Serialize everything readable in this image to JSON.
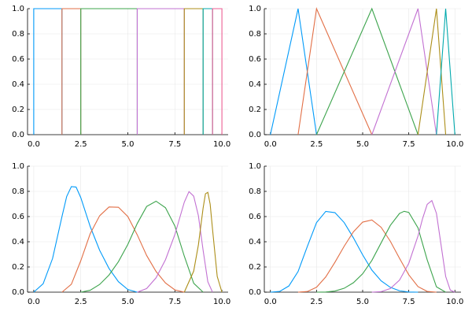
{
  "chart_data": [
    {
      "type": "line",
      "xlim": [
        -0.33,
        10.33
      ],
      "ylim": [
        0,
        1
      ],
      "grid": true,
      "xticks": [
        {
          "value": 0,
          "label": "0.0"
        },
        2.5,
        {
          "value": 5,
          "label": "5.0"
        },
        7.5,
        {
          "value": 10,
          "label": "10.0"
        }
      ],
      "yticks": [
        {
          "value": 0,
          "label": "0.0"
        },
        0.2,
        0.4,
        0.6,
        0.8,
        {
          "value": 1,
          "label": "1.0"
        }
      ],
      "series": [
        {
          "color": "#009af9",
          "x": [
            0,
            0,
            1.5,
            1.5
          ],
          "values": [
            0,
            1,
            1,
            0
          ]
        },
        {
          "color": "#e26f46",
          "x": [
            1.5,
            1.5,
            2.5,
            2.5
          ],
          "values": [
            0,
            1,
            1,
            0
          ]
        },
        {
          "color": "#3da44d",
          "x": [
            2.5,
            2.5,
            5.5,
            5.5
          ],
          "values": [
            0,
            1,
            1,
            0
          ]
        },
        {
          "color": "#c271d2",
          "x": [
            5.5,
            5.5,
            8,
            8
          ],
          "values": [
            0,
            1,
            1,
            0
          ]
        },
        {
          "color": "#ac8e18",
          "x": [
            8,
            8,
            9,
            9
          ],
          "values": [
            0,
            1,
            1,
            0
          ]
        },
        {
          "color": "#00a9ad",
          "x": [
            9,
            9,
            9.5,
            9.5
          ],
          "values": [
            0,
            1,
            1,
            0
          ]
        },
        {
          "color": "#ed5e93",
          "x": [
            9.5,
            9.5,
            10,
            10
          ],
          "values": [
            0,
            1,
            1,
            0
          ]
        }
      ]
    },
    {
      "type": "line",
      "xlim": [
        -0.33,
        10.33
      ],
      "ylim": [
        0,
        1
      ],
      "grid": true,
      "xticks": [
        {
          "value": 0,
          "label": "0.0"
        },
        2.5,
        {
          "value": 5,
          "label": "5.0"
        },
        7.5,
        {
          "value": 10,
          "label": "10.0"
        }
      ],
      "yticks": [
        {
          "value": 0,
          "label": "0.0"
        },
        0.2,
        0.4,
        0.6,
        0.8,
        {
          "value": 1,
          "label": "1.0"
        }
      ],
      "series": [
        {
          "color": "#009af9",
          "x": [
            0,
            1.5,
            2.5
          ],
          "values": [
            0,
            1,
            0
          ]
        },
        {
          "color": "#e26f46",
          "x": [
            1.5,
            2.5,
            5.5
          ],
          "values": [
            0,
            1,
            0
          ]
        },
        {
          "color": "#3da44d",
          "x": [
            2.5,
            5.5,
            8
          ],
          "values": [
            0,
            1,
            0
          ]
        },
        {
          "color": "#c271d2",
          "x": [
            5.5,
            8,
            9
          ],
          "values": [
            0,
            1,
            0
          ]
        },
        {
          "color": "#ac8e18",
          "x": [
            8,
            9,
            9.5
          ],
          "values": [
            0,
            1,
            0
          ]
        },
        {
          "color": "#00a9ad",
          "x": [
            9,
            9.5,
            10
          ],
          "values": [
            0,
            1,
            0
          ]
        }
      ]
    },
    {
      "type": "line",
      "xlim": [
        -0.33,
        10.33
      ],
      "ylim": [
        0,
        1
      ],
      "grid": true,
      "xticks": [
        {
          "value": 0,
          "label": "0.0"
        },
        2.5,
        {
          "value": 5,
          "label": "5.0"
        },
        7.5,
        {
          "value": 10,
          "label": "10.0"
        }
      ],
      "yticks": [
        {
          "value": 0,
          "label": "0.0"
        },
        0.2,
        0.4,
        0.6,
        0.8,
        {
          "value": 1,
          "label": "1.0"
        }
      ],
      "series": [
        {
          "color": "#009af9",
          "x": [
            0,
            0.5,
            1,
            1.5,
            1.75,
            2,
            2.25,
            2.5,
            3,
            3.5,
            4,
            4.5,
            5,
            5.5
          ],
          "values": [
            0,
            0.067,
            0.267,
            0.6,
            0.759,
            0.838,
            0.834,
            0.75,
            0.521,
            0.333,
            0.188,
            0.083,
            0.021,
            0
          ]
        },
        {
          "color": "#e26f46",
          "x": [
            1.5,
            2,
            2.5,
            3,
            3.5,
            4,
            4.5,
            5,
            5.5,
            6,
            6.5,
            7,
            7.5,
            8
          ],
          "values": [
            0,
            0.063,
            0.25,
            0.464,
            0.606,
            0.676,
            0.674,
            0.6,
            0.455,
            0.291,
            0.164,
            0.073,
            0.018,
            0
          ]
        },
        {
          "color": "#3da44d",
          "x": [
            2.5,
            3,
            3.5,
            4,
            4.5,
            5,
            5.5,
            6,
            6.5,
            7,
            7.5,
            8,
            8.5,
            9
          ],
          "values": [
            0,
            0.015,
            0.061,
            0.136,
            0.242,
            0.379,
            0.545,
            0.68,
            0.722,
            0.67,
            0.525,
            0.286,
            0.071,
            0
          ]
        },
        {
          "color": "#c271d2",
          "x": [
            5.5,
            6,
            6.5,
            7,
            7.5,
            8,
            8.25,
            8.5,
            8.75,
            9,
            9.25,
            9.5
          ],
          "values": [
            0,
            0.029,
            0.114,
            0.257,
            0.457,
            0.714,
            0.798,
            0.762,
            0.607,
            0.333,
            0.083,
            0
          ]
        },
        {
          "color": "#ac8e18",
          "x": [
            8,
            8.5,
            8.75,
            9,
            9.125,
            9.25,
            9.375,
            9.5,
            9.75,
            10
          ],
          "values": [
            0,
            0.167,
            0.375,
            0.667,
            0.781,
            0.792,
            0.698,
            0.5,
            0.125,
            0
          ]
        }
      ]
    },
    {
      "type": "line",
      "xlim": [
        -0.33,
        10.33
      ],
      "ylim": [
        0,
        1
      ],
      "grid": true,
      "xticks": [
        {
          "value": 0,
          "label": "0.0"
        },
        2.5,
        {
          "value": 5,
          "label": "5.0"
        },
        7.5,
        {
          "value": 10,
          "label": "10.0"
        }
      ],
      "yticks": [
        {
          "value": 0,
          "label": "0.0"
        },
        0.2,
        0.4,
        0.6,
        0.8,
        {
          "value": 1,
          "label": "1.0"
        }
      ],
      "series": [
        {
          "color": "#009af9",
          "x": [
            0,
            0.5,
            1,
            1.5,
            2,
            2.5,
            3,
            3.5,
            4,
            4.5,
            5,
            5.5,
            6,
            6.5,
            7,
            7.5,
            8
          ],
          "values": [
            0,
            0.006,
            0.049,
            0.164,
            0.362,
            0.552,
            0.641,
            0.631,
            0.552,
            0.431,
            0.296,
            0.175,
            0.09,
            0.038,
            0.011,
            0.001,
            0
          ]
        },
        {
          "color": "#e26f46",
          "x": [
            1.5,
            2,
            2.5,
            3,
            3.5,
            4,
            4.5,
            5,
            5.5,
            6,
            6.5,
            7,
            7.5,
            8,
            8.5,
            9
          ],
          "values": [
            0,
            0.005,
            0.039,
            0.121,
            0.238,
            0.365,
            0.479,
            0.556,
            0.573,
            0.515,
            0.404,
            0.268,
            0.138,
            0.044,
            0.006,
            0
          ]
        },
        {
          "color": "#3da44d",
          "x": [
            2.5,
            3,
            3.5,
            4,
            4.5,
            5,
            5.5,
            6,
            6.5,
            7,
            7.25,
            7.5,
            8,
            8.5,
            9,
            9.5
          ],
          "values": [
            0,
            0.001,
            0.009,
            0.031,
            0.075,
            0.146,
            0.252,
            0.391,
            0.53,
            0.625,
            0.642,
            0.633,
            0.51,
            0.256,
            0.042,
            0
          ]
        },
        {
          "color": "#c271d2",
          "x": [
            5.5,
            6,
            6.5,
            7,
            7.5,
            8,
            8.25,
            8.5,
            8.75,
            9,
            9.25,
            9.5,
            9.75,
            10
          ],
          "values": [
            0,
            0.004,
            0.029,
            0.096,
            0.229,
            0.446,
            0.585,
            0.697,
            0.727,
            0.625,
            0.375,
            0.125,
            0.016,
            0
          ]
        }
      ]
    }
  ]
}
